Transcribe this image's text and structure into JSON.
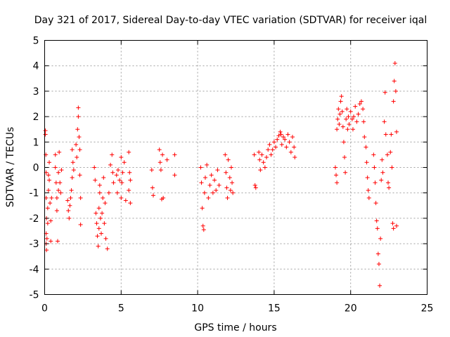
{
  "chart_data": {
    "type": "scatter",
    "title": "Day 321 of 2017, Sidereal Day-to-day VTEC variation (SDTVAR) for receiver iqal",
    "xlabel": "GPS time / hours",
    "ylabel": "SDTVAR / TECUs",
    "xlim": [
      0,
      25
    ],
    "ylim": [
      -5,
      5
    ],
    "xticks": [
      "0",
      "5",
      "10",
      "15",
      "20",
      "25"
    ],
    "yticks": [
      "-5",
      "-4",
      "-3",
      "-2",
      "-1",
      "0",
      "1",
      "2",
      "3",
      "4",
      "5"
    ],
    "grid": true,
    "marker": "+",
    "marker_color": "#ff0000",
    "series": [
      {
        "name": "SDTVAR",
        "points": [
          [
            0.05,
            1.45
          ],
          [
            0.05,
            1.3
          ],
          [
            0.08,
            0.5
          ],
          [
            0.1,
            -0.2
          ],
          [
            0.1,
            -1.2
          ],
          [
            0.12,
            -2.0
          ],
          [
            0.1,
            -2.6
          ],
          [
            0.1,
            -3.0
          ],
          [
            0.12,
            -3.25
          ],
          [
            0.15,
            -2.8
          ],
          [
            0.2,
            -2.2
          ],
          [
            0.2,
            -1.6
          ],
          [
            0.25,
            -0.9
          ],
          [
            0.25,
            -0.3
          ],
          [
            0.3,
            0.2
          ],
          [
            0.3,
            -0.5
          ],
          [
            0.35,
            -1.4
          ],
          [
            0.4,
            -2.1
          ],
          [
            0.4,
            -2.9
          ],
          [
            0.45,
            -1.2
          ],
          [
            0.7,
            0.5
          ],
          [
            0.7,
            0.0
          ],
          [
            0.75,
            -0.6
          ],
          [
            0.8,
            -1.2
          ],
          [
            0.8,
            -1.7
          ],
          [
            0.85,
            -2.9
          ],
          [
            0.9,
            -0.9
          ],
          [
            0.9,
            -0.2
          ],
          [
            0.95,
            0.6
          ],
          [
            1.0,
            -0.6
          ],
          [
            1.05,
            -1.0
          ],
          [
            1.1,
            -0.1
          ],
          [
            1.5,
            -1.3
          ],
          [
            1.55,
            -1.7
          ],
          [
            1.6,
            -2.0
          ],
          [
            1.65,
            -1.5
          ],
          [
            1.7,
            -1.2
          ],
          [
            1.75,
            -0.9
          ],
          [
            1.8,
            -0.4
          ],
          [
            1.8,
            0.7
          ],
          [
            1.85,
            0.2
          ],
          [
            1.9,
            -0.1
          ],
          [
            2.05,
            0.9
          ],
          [
            2.1,
            0.4
          ],
          [
            2.15,
            1.5
          ],
          [
            2.2,
            2.35
          ],
          [
            2.2,
            2.0
          ],
          [
            2.25,
            1.2
          ],
          [
            2.3,
            0.7
          ],
          [
            2.3,
            -0.3
          ],
          [
            2.35,
            -1.2
          ],
          [
            2.35,
            -2.25
          ],
          [
            3.25,
            0.0
          ],
          [
            3.3,
            -0.5
          ],
          [
            3.35,
            -1.8
          ],
          [
            3.4,
            -2.2
          ],
          [
            3.45,
            -2.7
          ],
          [
            3.5,
            -3.1
          ],
          [
            3.55,
            -2.4
          ],
          [
            3.55,
            -1.6
          ],
          [
            3.6,
            -0.7
          ],
          [
            3.6,
            -1.0
          ],
          [
            3.65,
            -2.0
          ],
          [
            3.7,
            -2.6
          ],
          [
            3.75,
            -1.8
          ],
          [
            3.8,
            -1.2
          ],
          [
            3.85,
            -0.4
          ],
          [
            3.9,
            -2.2
          ],
          [
            3.95,
            -1.4
          ],
          [
            4.0,
            -2.8
          ],
          [
            4.1,
            -3.2
          ],
          [
            4.2,
            -1.0
          ],
          [
            4.3,
            0.1
          ],
          [
            4.4,
            0.5
          ],
          [
            4.45,
            -0.2
          ],
          [
            4.5,
            -0.6
          ],
          [
            4.7,
            -0.3
          ],
          [
            4.75,
            -1.0
          ],
          [
            4.8,
            -0.1
          ],
          [
            4.9,
            -0.5
          ],
          [
            5.0,
            0.4
          ],
          [
            5.0,
            -1.2
          ],
          [
            5.05,
            -0.6
          ],
          [
            5.1,
            -0.2
          ],
          [
            5.2,
            0.2
          ],
          [
            5.3,
            -1.3
          ],
          [
            5.5,
            0.6
          ],
          [
            5.5,
            -0.9
          ],
          [
            5.55,
            -0.2
          ],
          [
            5.6,
            -1.4
          ],
          [
            5.6,
            -0.5
          ],
          [
            7.0,
            -0.1
          ],
          [
            7.05,
            -0.8
          ],
          [
            7.1,
            -1.1
          ],
          [
            7.5,
            0.7
          ],
          [
            7.55,
            0.2
          ],
          [
            7.6,
            -0.1
          ],
          [
            7.65,
            -1.25
          ],
          [
            7.7,
            0.5
          ],
          [
            7.75,
            -1.2
          ],
          [
            8.0,
            0.3
          ],
          [
            8.5,
            0.5
          ],
          [
            8.5,
            -0.3
          ],
          [
            10.2,
            0.0
          ],
          [
            10.25,
            -0.6
          ],
          [
            10.3,
            -1.6
          ],
          [
            10.35,
            -2.3
          ],
          [
            10.4,
            -2.45
          ],
          [
            10.45,
            -1.0
          ],
          [
            10.5,
            -0.4
          ],
          [
            10.6,
            0.1
          ],
          [
            10.7,
            -1.2
          ],
          [
            10.8,
            -0.7
          ],
          [
            10.9,
            -0.3
          ],
          [
            11.0,
            -1.0
          ],
          [
            11.1,
            -0.5
          ],
          [
            11.2,
            -0.9
          ],
          [
            11.3,
            -0.1
          ],
          [
            11.4,
            -0.7
          ],
          [
            11.8,
            0.5
          ],
          [
            11.85,
            -0.2
          ],
          [
            11.9,
            -0.8
          ],
          [
            11.95,
            -1.2
          ],
          [
            12.0,
            0.3
          ],
          [
            12.1,
            -0.4
          ],
          [
            12.15,
            -0.9
          ],
          [
            12.2,
            0.0
          ],
          [
            12.25,
            -0.6
          ],
          [
            12.3,
            -1.0
          ],
          [
            13.7,
            0.5
          ],
          [
            13.75,
            -0.7
          ],
          [
            13.8,
            -0.8
          ],
          [
            14.0,
            0.6
          ],
          [
            14.05,
            0.3
          ],
          [
            14.1,
            -0.1
          ],
          [
            14.2,
            0.5
          ],
          [
            14.3,
            0.2
          ],
          [
            14.4,
            0.0
          ],
          [
            14.5,
            0.4
          ],
          [
            14.6,
            0.7
          ],
          [
            14.7,
            0.9
          ],
          [
            14.8,
            0.5
          ],
          [
            14.9,
            0.7
          ],
          [
            15.0,
            1.0
          ],
          [
            15.1,
            0.8
          ],
          [
            15.2,
            1.1
          ],
          [
            15.3,
            1.25
          ],
          [
            15.4,
            1.4
          ],
          [
            15.45,
            1.3
          ],
          [
            15.5,
            0.9
          ],
          [
            15.6,
            1.2
          ],
          [
            15.7,
            1.1
          ],
          [
            15.8,
            0.8
          ],
          [
            15.9,
            1.3
          ],
          [
            16.0,
            1.0
          ],
          [
            16.1,
            0.6
          ],
          [
            16.2,
            1.2
          ],
          [
            16.3,
            0.8
          ],
          [
            16.35,
            0.4
          ],
          [
            19.0,
            0.0
          ],
          [
            19.05,
            -0.3
          ],
          [
            19.1,
            -0.6
          ],
          [
            19.1,
            1.5
          ],
          [
            19.15,
            1.9
          ],
          [
            19.2,
            2.3
          ],
          [
            19.25,
            1.7
          ],
          [
            19.3,
            2.1
          ],
          [
            19.35,
            2.6
          ],
          [
            19.4,
            2.8
          ],
          [
            19.45,
            2.2
          ],
          [
            19.5,
            1.6
          ],
          [
            19.55,
            1.0
          ],
          [
            19.6,
            0.4
          ],
          [
            19.65,
            -0.2
          ],
          [
            19.7,
            1.9
          ],
          [
            19.75,
            2.3
          ],
          [
            19.8,
            1.5
          ],
          [
            19.85,
            2.0
          ],
          [
            19.9,
            1.7
          ],
          [
            20.0,
            2.2
          ],
          [
            20.1,
            1.9
          ],
          [
            20.15,
            1.5
          ],
          [
            20.2,
            2.0
          ],
          [
            20.3,
            2.4
          ],
          [
            20.4,
            1.8
          ],
          [
            20.5,
            2.1
          ],
          [
            20.6,
            2.5
          ],
          [
            20.7,
            2.6
          ],
          [
            20.8,
            2.3
          ],
          [
            20.85,
            1.8
          ],
          [
            20.9,
            1.2
          ],
          [
            21.0,
            0.8
          ],
          [
            21.05,
            0.2
          ],
          [
            21.1,
            -0.4
          ],
          [
            21.15,
            -0.9
          ],
          [
            21.2,
            -1.2
          ],
          [
            21.5,
            0.5
          ],
          [
            21.55,
            0.0
          ],
          [
            21.6,
            -0.6
          ],
          [
            21.65,
            -1.4
          ],
          [
            21.7,
            -2.1
          ],
          [
            21.75,
            -2.4
          ],
          [
            21.8,
            -3.4
          ],
          [
            21.85,
            -3.8
          ],
          [
            21.9,
            -4.65
          ],
          [
            21.95,
            -2.8
          ],
          [
            22.0,
            -0.5
          ],
          [
            22.05,
            0.3
          ],
          [
            22.1,
            -0.2
          ],
          [
            22.2,
            1.8
          ],
          [
            22.25,
            2.95
          ],
          [
            22.3,
            1.3
          ],
          [
            22.4,
            0.5
          ],
          [
            22.45,
            -0.6
          ],
          [
            22.5,
            -0.8
          ],
          [
            22.6,
            0.6
          ],
          [
            22.65,
            1.3
          ],
          [
            22.7,
            0.0
          ],
          [
            22.75,
            -2.2
          ],
          [
            22.8,
            -2.4
          ],
          [
            22.8,
            2.6
          ],
          [
            22.85,
            3.4
          ],
          [
            22.9,
            4.1
          ],
          [
            22.95,
            3.0
          ],
          [
            23.0,
            1.4
          ],
          [
            23.0,
            -2.3
          ]
        ]
      }
    ]
  }
}
